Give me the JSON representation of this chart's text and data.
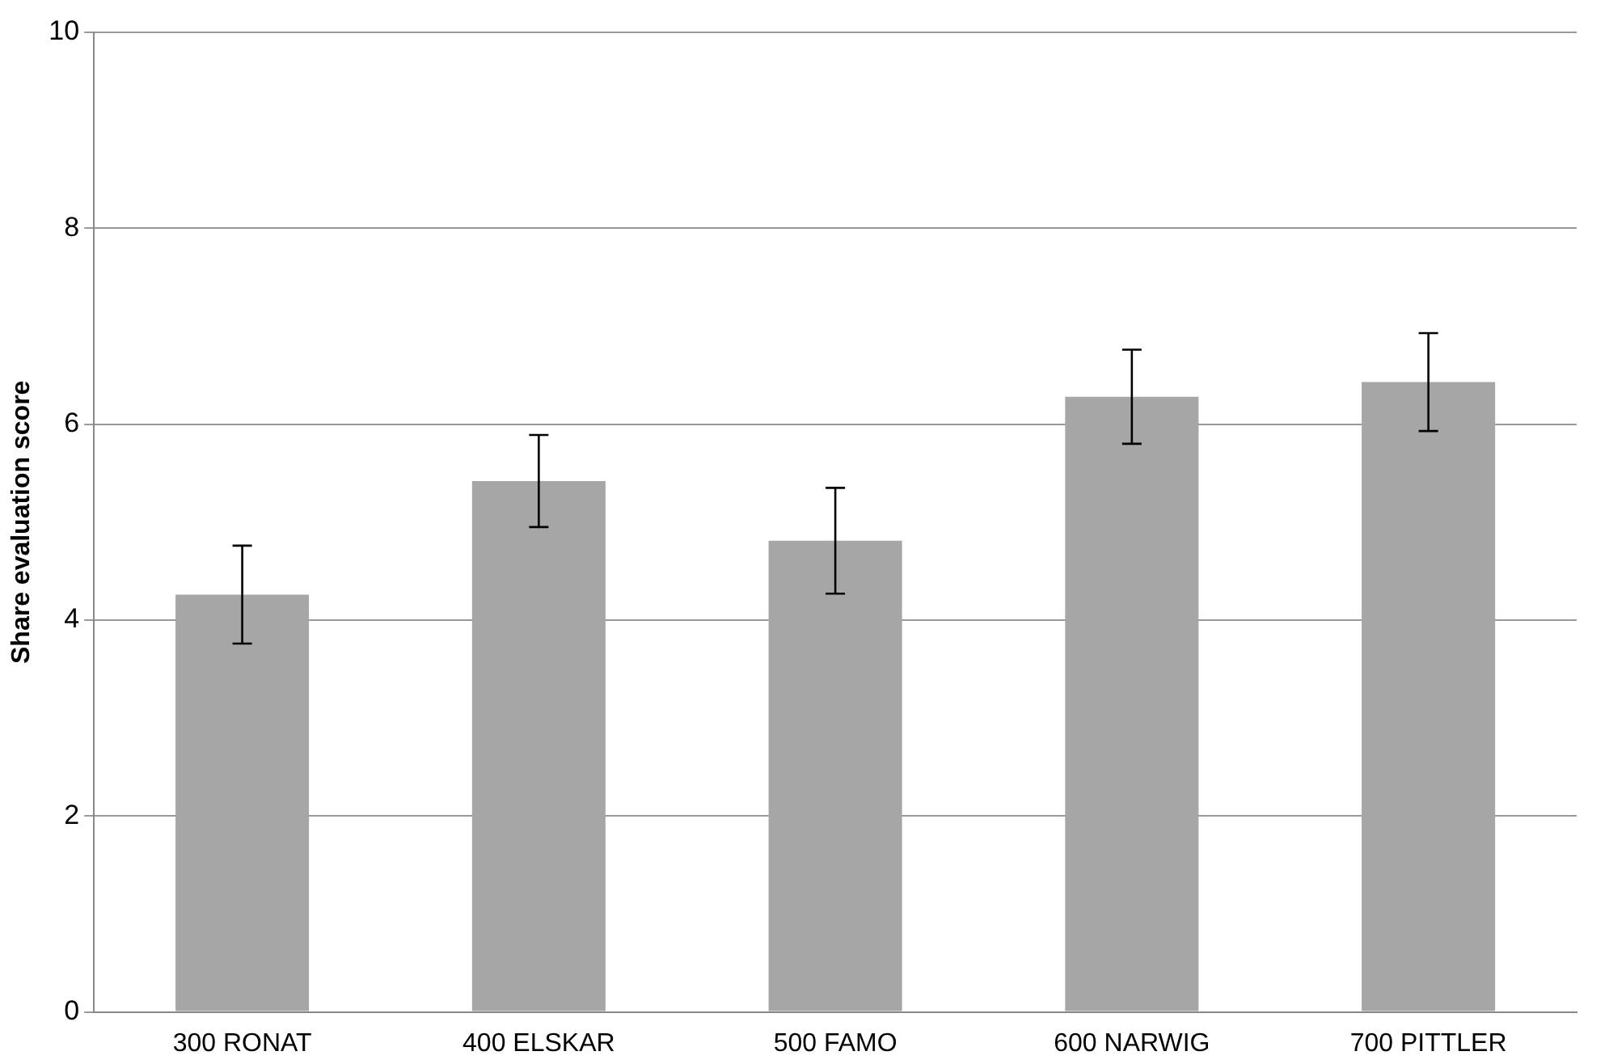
{
  "chart_data": {
    "type": "bar",
    "ylabel": "Share evaluation score",
    "categories": [
      "300 RONAT",
      "400 ELSKAR",
      "500 FAMO",
      "600 NARWIG",
      "700 PITTLER"
    ],
    "values": [
      4.26,
      5.42,
      4.81,
      6.28,
      6.43
    ],
    "errors": [
      0.5,
      0.47,
      0.54,
      0.48,
      0.5
    ],
    "color": "#a6a6a6",
    "ylim": [
      0,
      10
    ],
    "yticks": [
      0,
      2,
      4,
      6,
      8,
      10
    ],
    "grid": "y",
    "legend": false
  }
}
